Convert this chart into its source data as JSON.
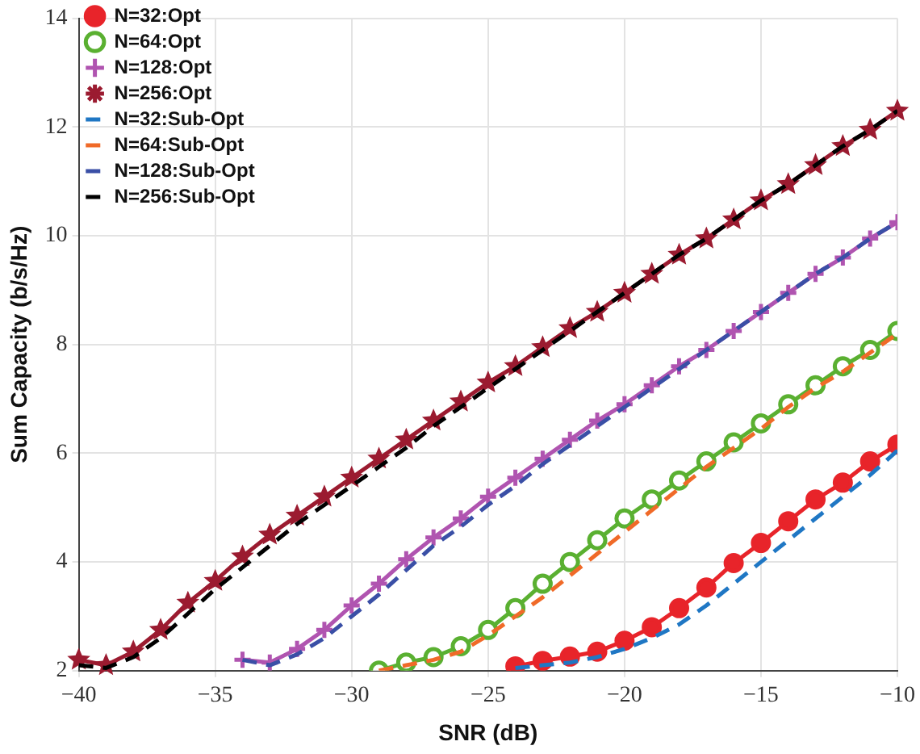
{
  "chart_data": {
    "type": "line",
    "xlabel": "SNR (dB)",
    "ylabel": "Sum Capacity (b/s/Hz)",
    "xlim": [
      -40,
      -10
    ],
    "xticks": [
      {
        "value": -40,
        "label": "−40"
      },
      {
        "value": -35,
        "label": "−35"
      },
      {
        "value": -30,
        "label": "−30"
      },
      {
        "value": -25,
        "label": "−25"
      },
      {
        "value": -20,
        "label": "−20"
      },
      {
        "value": -15,
        "label": "−15"
      },
      {
        "value": -10,
        "label": "−10"
      }
    ],
    "ylim": [
      2,
      14
    ],
    "yticks": [
      2,
      4,
      6,
      8,
      10,
      12,
      14
    ],
    "grid": true,
    "legend": "top left",
    "series": [
      {
        "name": "N=32:Opt",
        "color": "#e8242a",
        "marker": "circle",
        "line_style": "solid",
        "x": [
          -24,
          -23,
          -22,
          -21,
          -20,
          -19,
          -18,
          -17,
          -16,
          -15,
          -14,
          -13,
          -12,
          -11,
          -10
        ],
        "values": [
          2.08,
          2.18,
          2.26,
          2.35,
          2.55,
          2.8,
          3.15,
          3.53,
          3.98,
          4.35,
          4.75,
          5.15,
          5.46,
          5.85,
          6.16
        ]
      },
      {
        "name": "N=64:Opt",
        "color": "#5ab031",
        "marker": "circle",
        "line_style": "solid",
        "x": [
          -29,
          -28,
          -27,
          -26,
          -25,
          -24,
          -23,
          -22,
          -21,
          -20,
          -19,
          -18,
          -17,
          -16,
          -15,
          -14,
          -13,
          -12,
          -11,
          -10
        ],
        "values": [
          2.0,
          2.15,
          2.25,
          2.45,
          2.75,
          3.15,
          3.6,
          4.0,
          4.4,
          4.8,
          5.15,
          5.5,
          5.85,
          6.2,
          6.55,
          6.9,
          7.25,
          7.6,
          7.9,
          8.25
        ]
      },
      {
        "name": "N=128:Opt",
        "color": "#b054b0",
        "marker": "cross",
        "line_style": "solid",
        "x": [
          -34,
          -33,
          -32,
          -31,
          -30,
          -29,
          -28,
          -27,
          -26,
          -25,
          -24,
          -23,
          -22,
          -21,
          -20,
          -19,
          -18,
          -17,
          -16,
          -15,
          -14,
          -13,
          -12,
          -11,
          -10
        ],
        "values": [
          2.2,
          2.15,
          2.4,
          2.75,
          3.2,
          3.6,
          4.05,
          4.45,
          4.8,
          5.2,
          5.55,
          5.9,
          6.25,
          6.6,
          6.9,
          7.25,
          7.6,
          7.9,
          8.25,
          8.6,
          8.95,
          9.3,
          9.6,
          9.95,
          10.25
        ]
      },
      {
        "name": "N=256:Opt",
        "color": "#9b1b30",
        "marker": "star",
        "line_style": "solid",
        "x": [
          -40,
          -39,
          -38,
          -37,
          -36,
          -35,
          -34,
          -33,
          -32,
          -31,
          -30,
          -29,
          -28,
          -27,
          -26,
          -25,
          -24,
          -23,
          -22,
          -21,
          -20,
          -19,
          -18,
          -17,
          -16,
          -15,
          -14,
          -13,
          -12,
          -11,
          -10
        ],
        "values": [
          2.2,
          2.1,
          2.35,
          2.75,
          3.25,
          3.65,
          4.1,
          4.5,
          4.85,
          5.2,
          5.55,
          5.9,
          6.25,
          6.6,
          6.95,
          7.3,
          7.6,
          7.95,
          8.3,
          8.6,
          8.95,
          9.3,
          9.65,
          9.95,
          10.3,
          10.65,
          10.95,
          11.3,
          11.65,
          11.95,
          12.3
        ]
      },
      {
        "name": "N=32:Sub-Opt",
        "color": "#1f77c4",
        "marker": "none",
        "line_style": "dashed",
        "x": [
          -24,
          -23,
          -22,
          -21,
          -20,
          -19,
          -18,
          -17,
          -16,
          -15,
          -14,
          -13,
          -12,
          -11,
          -10
        ],
        "values": [
          2.05,
          2.1,
          2.15,
          2.25,
          2.4,
          2.6,
          2.85,
          3.2,
          3.6,
          4.0,
          4.4,
          4.8,
          5.2,
          5.6,
          6.05
        ]
      },
      {
        "name": "N=64:Sub-Opt",
        "color": "#f06a28",
        "marker": "none",
        "line_style": "dashed",
        "x": [
          -29,
          -28,
          -27,
          -26,
          -25,
          -24,
          -23,
          -22,
          -21,
          -20,
          -19,
          -18,
          -17,
          -16,
          -15,
          -14,
          -13,
          -12,
          -11,
          -10
        ],
        "values": [
          2.0,
          2.1,
          2.2,
          2.35,
          2.65,
          3.0,
          3.35,
          3.75,
          4.15,
          4.55,
          4.95,
          5.35,
          5.75,
          6.1,
          6.45,
          6.85,
          7.2,
          7.5,
          7.85,
          8.2
        ]
      },
      {
        "name": "N=128:Sub-Opt",
        "color": "#3a4fa6",
        "marker": "none",
        "line_style": "dashed",
        "x": [
          -34,
          -33,
          -32,
          -31,
          -30,
          -29,
          -28,
          -27,
          -26,
          -25,
          -24,
          -23,
          -22,
          -21,
          -20,
          -19,
          -18,
          -17,
          -16,
          -15,
          -14,
          -13,
          -12,
          -11,
          -10
        ],
        "values": [
          2.2,
          2.1,
          2.3,
          2.6,
          3.0,
          3.4,
          3.85,
          4.3,
          4.65,
          5.05,
          5.4,
          5.8,
          6.15,
          6.5,
          6.85,
          7.2,
          7.55,
          7.9,
          8.25,
          8.6,
          8.95,
          9.3,
          9.6,
          9.95,
          10.25
        ]
      },
      {
        "name": "N=256:Sub-Opt",
        "color": "#000000",
        "marker": "none",
        "line_style": "dashed",
        "x": [
          -40,
          -39,
          -38,
          -37,
          -36,
          -35,
          -34,
          -33,
          -32,
          -31,
          -30,
          -29,
          -28,
          -27,
          -26,
          -25,
          -24,
          -23,
          -22,
          -21,
          -20,
          -19,
          -18,
          -17,
          -16,
          -15,
          -14,
          -13,
          -12,
          -11,
          -10
        ],
        "values": [
          2.1,
          2.05,
          2.25,
          2.6,
          3.05,
          3.5,
          3.9,
          4.3,
          4.7,
          5.05,
          5.4,
          5.75,
          6.1,
          6.5,
          6.85,
          7.2,
          7.55,
          7.9,
          8.25,
          8.6,
          8.95,
          9.3,
          9.65,
          9.95,
          10.3,
          10.65,
          10.95,
          11.3,
          11.65,
          11.95,
          12.3
        ]
      }
    ]
  }
}
